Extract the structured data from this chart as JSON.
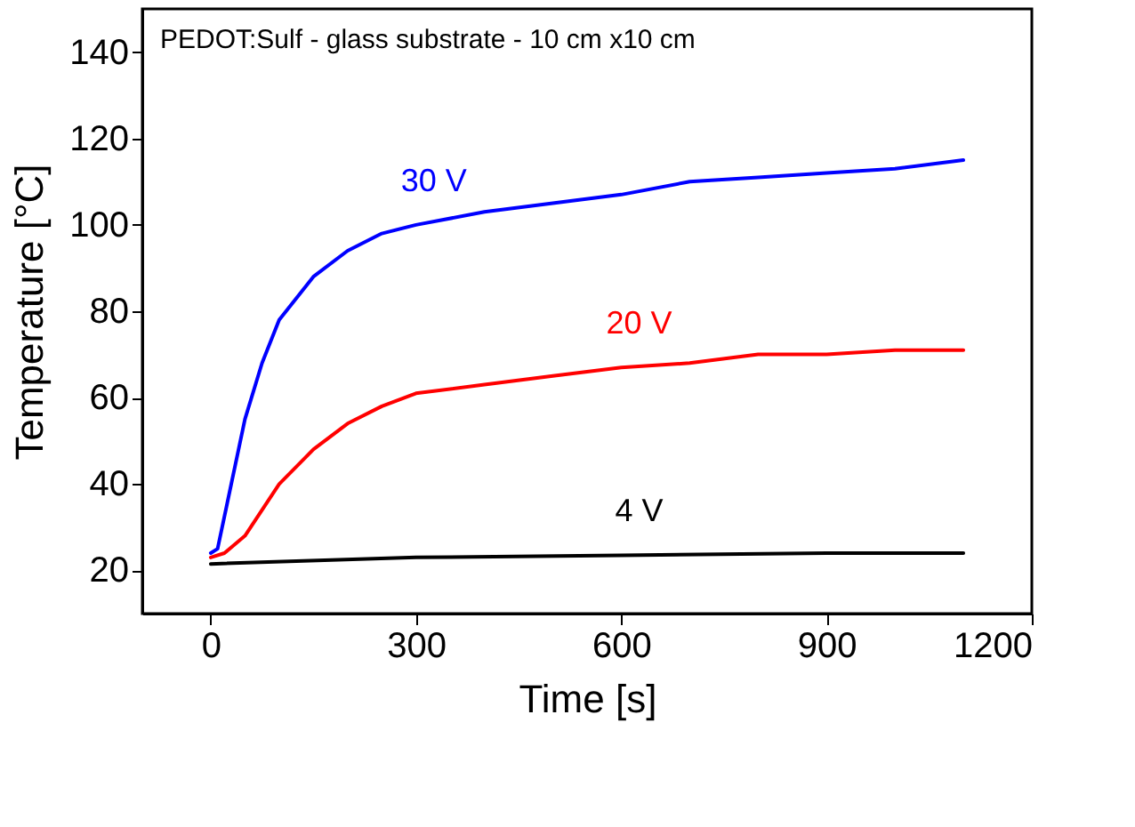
{
  "chart_data": {
    "type": "line",
    "xlabel": "Time [s]",
    "ylabel": "Temperature [°C]",
    "annotations": [
      "PEDOT:Sulf - glass substrate - 10 cm x10 cm"
    ],
    "xlim": [
      -100,
      1200
    ],
    "xticks": [
      0,
      300,
      600,
      900,
      1200
    ],
    "ylim": [
      10,
      150
    ],
    "yticks": [
      20,
      40,
      60,
      80,
      100,
      120,
      140
    ],
    "grid": false,
    "legend": false,
    "marker": "none",
    "line_style": "solid",
    "series": [
      {
        "name": "30 V",
        "color": "#0000ff",
        "x": [
          0,
          10,
          30,
          50,
          75,
          100,
          150,
          200,
          250,
          300,
          400,
          500,
          600,
          700,
          800,
          900,
          1000,
          1100
        ],
        "values": [
          24,
          25,
          40,
          55,
          68,
          78,
          88,
          94,
          98,
          100,
          103,
          105,
          107,
          110,
          111,
          112,
          113,
          115
        ]
      },
      {
        "name": "20 V",
        "color": "#ff0000",
        "x": [
          0,
          20,
          50,
          100,
          150,
          200,
          250,
          300,
          400,
          500,
          600,
          700,
          800,
          900,
          1000,
          1100
        ],
        "values": [
          23,
          24,
          28,
          40,
          48,
          54,
          58,
          61,
          63,
          65,
          67,
          68,
          70,
          70,
          71,
          71
        ]
      },
      {
        "name": "4 V",
        "color": "#000000",
        "x": [
          0,
          300,
          600,
          900,
          1100
        ],
        "values": [
          21.5,
          23,
          23.5,
          24,
          24
        ]
      }
    ]
  }
}
